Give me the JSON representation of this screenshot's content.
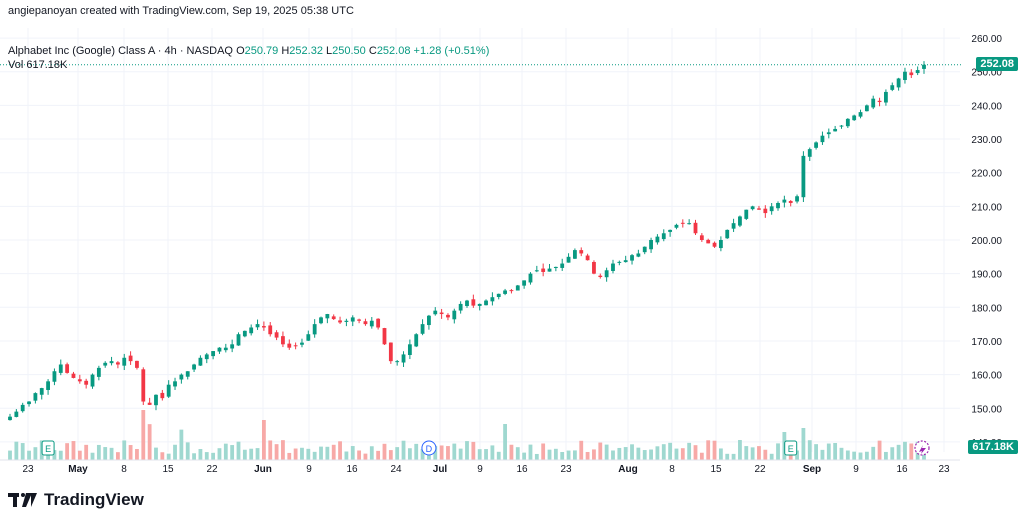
{
  "header": {
    "text": "angiepanoyan created with TradingView.com, Sep 19, 2025 05:38 UTC"
  },
  "legend": {
    "symbol": "Alphabet Inc (Google) Class A · 4h · NASDAQ",
    "o_label": "O",
    "o_value": "250.79",
    "h_label": "H",
    "h_value": "252.32",
    "l_label": "L",
    "l_value": "250.50",
    "c_label": "C",
    "c_value": "252.08",
    "change": "+1.28 (+0.51%)",
    "vol_label": "Vol",
    "vol_value": "617.18K"
  },
  "price_tags": {
    "last_price": "252.08",
    "last_volume": "617.18K"
  },
  "colors": {
    "up": "#089981",
    "down": "#f23645",
    "vol_up": "#9fd8d0",
    "vol_down": "#f7a9a7",
    "grid": "#f0f3fa",
    "axis_text": "#131722"
  },
  "events": [
    {
      "label": "E",
      "type": "earnings",
      "xIndex": 6
    },
    {
      "label": "D",
      "type": "dividend",
      "xIndex": 66
    },
    {
      "label": "E",
      "type": "earnings",
      "xIndex": 123
    },
    {
      "label": "D",
      "type": "dividend",
      "xIndex": 187
    }
  ],
  "footer": {
    "brand": "TradingView"
  },
  "chart_data": {
    "type": "candlestick",
    "title": "Alphabet Inc (Google) Class A · 4h · NASDAQ",
    "y_axis": {
      "ticks": [
        "140.00",
        "150.00",
        "160.00",
        "170.00",
        "180.00",
        "190.00",
        "200.00",
        "210.00",
        "220.00",
        "230.00",
        "240.00",
        "250.00",
        "260.00"
      ],
      "range": [
        137,
        263
      ]
    },
    "x_axis": {
      "ticks": [
        "23",
        "May",
        "8",
        "15",
        "22",
        "Jun",
        "9",
        "16",
        "24",
        "Jul",
        "9",
        "16",
        "23",
        "Aug",
        "8",
        "15",
        "22",
        "Sep",
        "9",
        "16",
        "23"
      ]
    },
    "grid": true,
    "close": [
      147.5,
      149,
      151,
      152,
      154.5,
      156,
      158,
      161,
      163,
      160.5,
      159,
      158,
      157,
      160,
      162,
      163.5,
      164,
      163,
      165,
      164,
      162,
      152,
      151,
      154,
      153,
      157,
      158,
      160,
      161,
      163,
      165,
      166,
      167,
      168,
      168,
      169,
      172,
      173,
      174,
      175,
      174,
      172,
      171,
      169,
      168,
      168.5,
      169.5,
      172,
      175,
      177,
      178,
      176.5,
      175.5,
      176,
      177,
      176,
      175,
      176,
      174,
      169,
      164,
      164,
      166,
      169,
      172,
      175,
      177.5,
      179,
      178,
      177,
      179,
      181,
      182,
      180.5,
      181,
      182,
      183,
      184,
      185,
      185,
      186.5,
      188,
      190,
      191,
      190.5,
      191.5,
      192,
      193,
      195,
      197,
      196,
      194,
      190,
      189,
      191,
      193,
      193.5,
      194,
      195.5,
      196,
      198,
      200,
      201,
      202,
      203,
      204.5,
      205,
      205,
      202,
      200,
      199,
      198,
      200,
      203,
      205,
      207,
      209,
      210,
      209,
      208,
      210,
      211,
      212,
      211,
      213,
      225,
      227,
      229,
      231,
      232,
      233,
      234,
      236,
      237,
      238,
      240,
      242,
      241,
      244,
      246,
      248,
      250,
      249,
      250.5,
      252.08
    ],
    "volume_scale_max": 200
  }
}
